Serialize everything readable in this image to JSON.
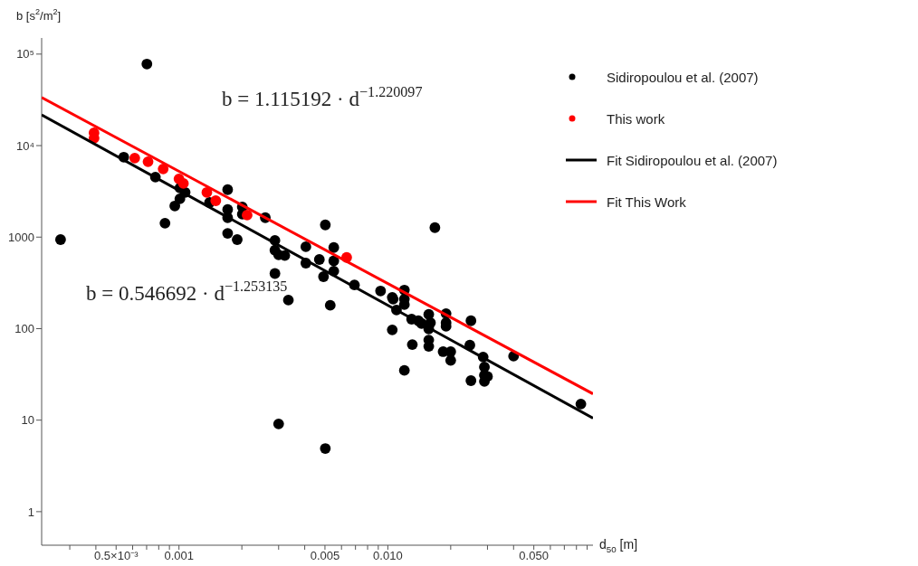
{
  "chart_data": {
    "type": "scatter",
    "xlabel": "d$_{50}$ [m]",
    "ylabel": "b [s$^{2}$/m$^{2}$]",
    "annotations": [
      "b = 1.115192 · d$^{−1.220097}$",
      "b = 0.546692 · d$^{−1.253135}$"
    ],
    "log": "xy",
    "xlim": [
      0.00022,
      0.096
    ],
    "ylim": [
      0.43,
      150000
    ],
    "xticks": [
      {
        "value": 0.0003,
        "label": null
      },
      {
        "value": 0.0004,
        "label": null
      },
      {
        "value": 0.0005,
        "label": "0.5×10⁻³"
      },
      {
        "value": 0.0006,
        "label": null
      },
      {
        "value": 0.0007,
        "label": null
      },
      {
        "value": 0.0008,
        "label": null
      },
      {
        "value": 0.0009,
        "label": null
      },
      {
        "value": 0.001,
        "label": "0.001"
      },
      {
        "value": 0.002,
        "label": null
      },
      {
        "value": 0.003,
        "label": null
      },
      {
        "value": 0.004,
        "label": null
      },
      {
        "value": 0.005,
        "label": "0.005"
      },
      {
        "value": 0.006,
        "label": null
      },
      {
        "value": 0.007,
        "label": null
      },
      {
        "value": 0.008,
        "label": null
      },
      {
        "value": 0.009,
        "label": null
      },
      {
        "value": 0.01,
        "label": "0.010"
      },
      {
        "value": 0.02,
        "label": null
      },
      {
        "value": 0.03,
        "label": null
      },
      {
        "value": 0.04,
        "label": null
      },
      {
        "value": 0.05,
        "label": "0.050"
      },
      {
        "value": 0.06,
        "label": null
      },
      {
        "value": 0.07,
        "label": null
      },
      {
        "value": 0.08,
        "label": null
      },
      {
        "value": 0.09,
        "label": null
      }
    ],
    "yticks": [
      1,
      10,
      100,
      1000,
      {
        "value": 10000,
        "label": "10⁴"
      },
      {
        "value": 100000,
        "label": "10⁵"
      }
    ],
    "legend": "top right",
    "series": [
      {
        "name": "Sidiropoulou et al. (2007)",
        "marker": "circle",
        "color": "#000000",
        "x": [
          0.000271,
          0.000702,
          0.000544,
          0.000771,
          0.000857,
          0.000955,
          0.00101,
          0.00101,
          0.00107,
          0.0014,
          0.00171,
          0.00171,
          0.00171,
          0.00171,
          0.0019,
          0.00201,
          0.00201,
          0.00259,
          0.00288,
          0.00288,
          0.00288,
          0.003,
          0.00321,
          0.00405,
          0.00405,
          0.00334,
          0.003,
          0.00502,
          0.0047,
          0.00492,
          0.00551,
          0.00551,
          0.00551,
          0.0053,
          0.00502,
          0.00692,
          0.00923,
          0.0105,
          0.0106,
          0.0105,
          0.011,
          0.012,
          0.012,
          0.012,
          0.012,
          0.013,
          0.0131,
          0.014,
          0.0145,
          0.0157,
          0.016,
          0.0157,
          0.0157,
          0.0157,
          0.0168,
          0.0184,
          0.019,
          0.019,
          0.019,
          0.02,
          0.02,
          0.0247,
          0.025,
          0.025,
          0.0286,
          0.029,
          0.029,
          0.03,
          0.029,
          0.04,
          0.084
        ],
        "values": [
          940,
          77900,
          7480,
          4530,
          1420,
          2190,
          3450,
          2620,
          3080,
          2390,
          3300,
          2000,
          1630,
          1100,
          940,
          2140,
          1780,
          1630,
          920,
          720,
          400,
          640,
          630,
          785,
          520,
          205,
          9.1,
          1360,
          570,
          370,
          770,
          550,
          425,
          180,
          4.9,
          300,
          258,
          220,
          210,
          97,
          160,
          264,
          210,
          183,
          35,
          127,
          67,
          122,
          114,
          143,
          116,
          99,
          75,
          64,
          1270,
          56,
          146,
          116,
          106,
          56,
          45,
          66,
          122,
          27,
          49,
          38,
          31,
          30,
          26.5,
          50,
          15
        ]
      },
      {
        "name": "This work",
        "marker": "circle",
        "color": "#ff0000",
        "x": [
          0.000392,
          0.000392,
          0.000614,
          0.000711,
          0.00084,
          0.001,
          0.00105,
          0.00136,
          0.0015,
          0.00212,
          0.00635
        ],
        "values": [
          13800,
          12050,
          7310,
          6670,
          5560,
          4330,
          3860,
          3080,
          2500,
          1740,
          600
        ]
      },
      {
        "name": "Fit Sidiropoulou et al. (2007)",
        "type": "line",
        "marker": "none",
        "color": "#000000",
        "x": [
          0.00022,
          0.096
        ],
        "values": [
          21700,
          10.5
        ]
      },
      {
        "name": "Fit This Work",
        "type": "line",
        "marker": "none",
        "color": "#ff0000",
        "x": [
          0.00022,
          0.096
        ],
        "values": [
          33500,
          19.4
        ]
      }
    ]
  }
}
